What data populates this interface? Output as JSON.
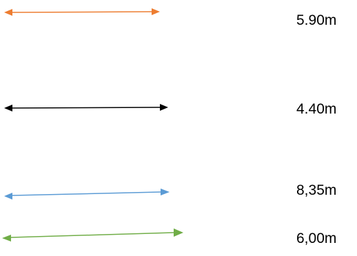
{
  "measurements": [
    {
      "label": "5.90m",
      "color": "#ED7D31"
    },
    {
      "label": "4.40m",
      "color": "#000000"
    },
    {
      "label": "8,35m",
      "color": "#5B9BD5"
    },
    {
      "label": "6,00m",
      "color": "#70AD47"
    }
  ]
}
